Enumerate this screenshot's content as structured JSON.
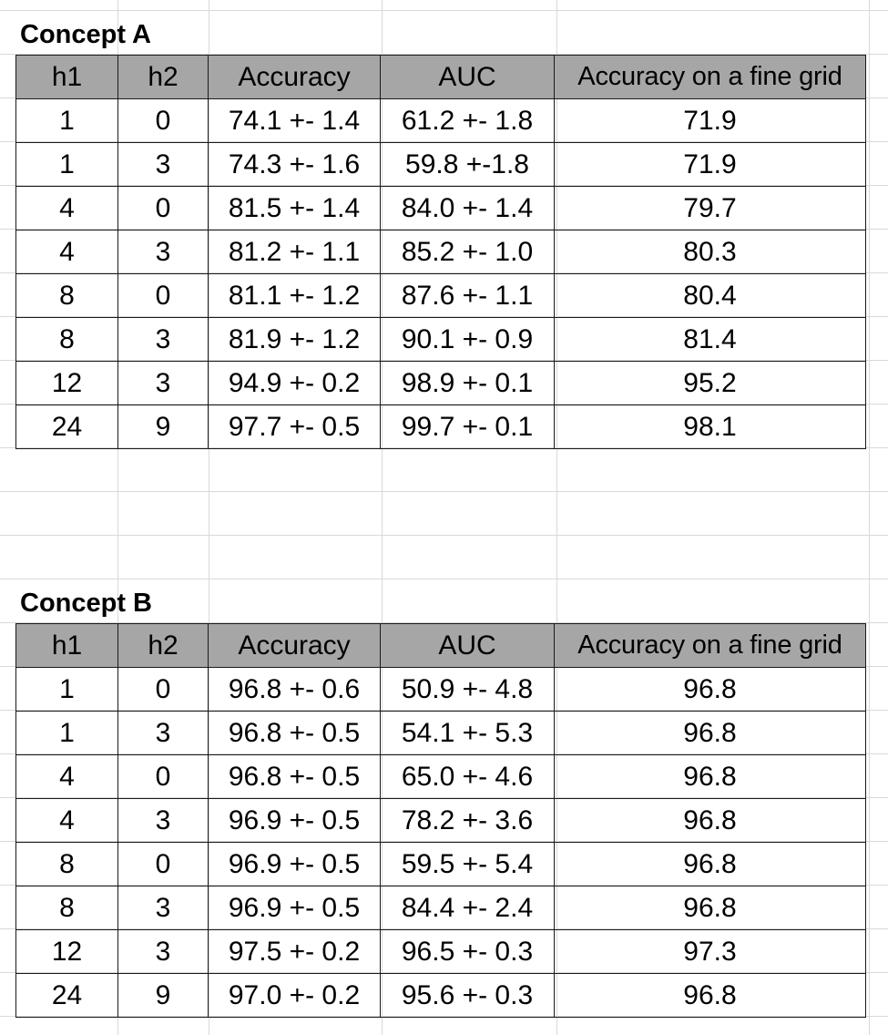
{
  "sections": [
    {
      "title": "Concept A",
      "columns": [
        "h1",
        "h2",
        "Accuracy",
        "AUC",
        "Accuracy on a fine grid"
      ],
      "rows": [
        [
          "1",
          "0",
          "74.1 +- 1.4",
          "61.2 +- 1.8",
          "71.9"
        ],
        [
          "1",
          "3",
          "74.3 +- 1.6",
          "59.8 +-1.8",
          "71.9"
        ],
        [
          "4",
          "0",
          "81.5 +- 1.4",
          "84.0 +- 1.4",
          "79.7"
        ],
        [
          "4",
          "3",
          "81.2 +- 1.1",
          "85.2 +- 1.0",
          "80.3"
        ],
        [
          "8",
          "0",
          "81.1 +- 1.2",
          "87.6 +- 1.1",
          "80.4"
        ],
        [
          "8",
          "3",
          "81.9 +- 1.2",
          "90.1 +- 0.9",
          "81.4"
        ],
        [
          "12",
          "3",
          "94.9 +- 0.2",
          "98.9 +- 0.1",
          "95.2"
        ],
        [
          "24",
          "9",
          "97.7 +- 0.5",
          "99.7 +- 0.1",
          "98.1"
        ]
      ]
    },
    {
      "title": "Concept B",
      "columns": [
        "h1",
        "h2",
        "Accuracy",
        "AUC",
        "Accuracy on a fine grid"
      ],
      "rows": [
        [
          "1",
          "0",
          "96.8 +- 0.6",
          "50.9 +- 4.8",
          "96.8"
        ],
        [
          "1",
          "3",
          "96.8 +- 0.5",
          "54.1 +- 5.3",
          "96.8"
        ],
        [
          "4",
          "0",
          "96.8 +- 0.5",
          "65.0 +- 4.6",
          "96.8"
        ],
        [
          "4",
          "3",
          "96.9 +- 0.5",
          "78.2 +- 3.6",
          "96.8"
        ],
        [
          "8",
          "0",
          "96.9 +- 0.5",
          "59.5 +- 5.4",
          "96.8"
        ],
        [
          "8",
          "3",
          "96.9 +- 0.5",
          "84.4 +- 2.4",
          "96.8"
        ],
        [
          "12",
          "3",
          "97.5 +- 0.2",
          "96.5 +- 0.3",
          "97.3"
        ],
        [
          "24",
          "9",
          "97.0 +- 0.2",
          "95.6 +- 0.3",
          "96.8"
        ]
      ]
    }
  ]
}
